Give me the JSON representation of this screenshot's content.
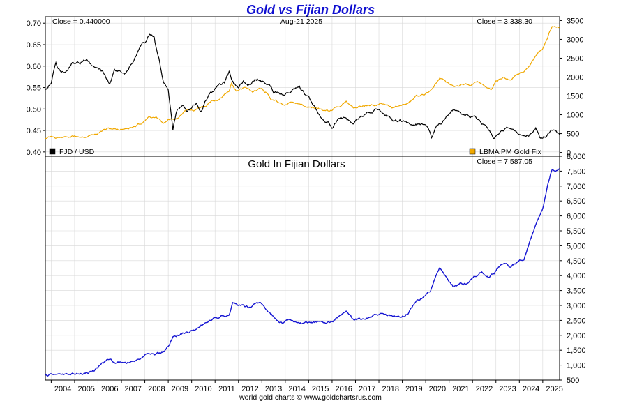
{
  "title": "Gold vs Fijian Dollars",
  "footer": "world gold charts © www.goldchartsrus.com",
  "colors": {
    "title": "#1010d0",
    "fjd": "#000000",
    "gold": "#f0a800",
    "gold_fjd": "#1414d2",
    "grid": "#d8d8d8"
  },
  "chart_data": [
    {
      "type": "line",
      "panel": "top",
      "date_label": "Aug-21  2025",
      "left_close_label": "Close = 0.440000",
      "right_close_label": "Close = 3,338.30",
      "left_axis": {
        "ticks": [
          "0.40",
          "0.45",
          "0.50",
          "0.55",
          "0.60",
          "0.65",
          "0.70"
        ],
        "range": [
          0.39,
          0.715
        ]
      },
      "right_axis": {
        "ticks": [
          "0",
          "500",
          "1000",
          "1500",
          "2000",
          "2500",
          "3000",
          "3500"
        ],
        "range": [
          -100,
          3600
        ]
      },
      "x_range": [
        2003.75,
        2025.72
      ],
      "series": [
        {
          "name": "FJD / USD",
          "axis": "left",
          "points": [
            [
              2003.75,
              0.545
            ],
            [
              2004.0,
              0.565
            ],
            [
              2004.2,
              0.605
            ],
            [
              2004.4,
              0.585
            ],
            [
              2004.6,
              0.585
            ],
            [
              2004.9,
              0.605
            ],
            [
              2005.2,
              0.605
            ],
            [
              2005.5,
              0.615
            ],
            [
              2005.8,
              0.595
            ],
            [
              2006.1,
              0.595
            ],
            [
              2006.3,
              0.58
            ],
            [
              2006.5,
              0.56
            ],
            [
              2006.7,
              0.595
            ],
            [
              2006.9,
              0.59
            ],
            [
              2007.2,
              0.585
            ],
            [
              2007.4,
              0.605
            ],
            [
              2007.6,
              0.625
            ],
            [
              2007.8,
              0.645
            ],
            [
              2008.0,
              0.655
            ],
            [
              2008.2,
              0.675
            ],
            [
              2008.4,
              0.67
            ],
            [
              2008.5,
              0.64
            ],
            [
              2008.6,
              0.62
            ],
            [
              2008.8,
              0.56
            ],
            [
              2009.0,
              0.545
            ],
            [
              2009.2,
              0.45
            ],
            [
              2009.3,
              0.48
            ],
            [
              2009.4,
              0.5
            ],
            [
              2009.6,
              0.51
            ],
            [
              2009.8,
              0.5
            ],
            [
              2010.0,
              0.505
            ],
            [
              2010.2,
              0.515
            ],
            [
              2010.4,
              0.495
            ],
            [
              2010.6,
              0.52
            ],
            [
              2010.8,
              0.535
            ],
            [
              2011.0,
              0.545
            ],
            [
              2011.2,
              0.555
            ],
            [
              2011.4,
              0.56
            ],
            [
              2011.6,
              0.585
            ],
            [
              2011.8,
              0.56
            ],
            [
              2012.0,
              0.55
            ],
            [
              2012.2,
              0.565
            ],
            [
              2012.4,
              0.555
            ],
            [
              2012.6,
              0.565
            ],
            [
              2012.8,
              0.57
            ],
            [
              2013.0,
              0.565
            ],
            [
              2013.3,
              0.56
            ],
            [
              2013.5,
              0.54
            ],
            [
              2013.8,
              0.535
            ],
            [
              2014.0,
              0.535
            ],
            [
              2014.3,
              0.545
            ],
            [
              2014.6,
              0.55
            ],
            [
              2014.9,
              0.53
            ],
            [
              2015.2,
              0.51
            ],
            [
              2015.5,
              0.485
            ],
            [
              2015.8,
              0.47
            ],
            [
              2016.0,
              0.46
            ],
            [
              2016.3,
              0.475
            ],
            [
              2016.6,
              0.48
            ],
            [
              2016.9,
              0.465
            ],
            [
              2017.2,
              0.48
            ],
            [
              2017.5,
              0.49
            ],
            [
              2017.8,
              0.495
            ],
            [
              2018.0,
              0.5
            ],
            [
              2018.3,
              0.49
            ],
            [
              2018.6,
              0.475
            ],
            [
              2018.9,
              0.475
            ],
            [
              2019.2,
              0.47
            ],
            [
              2019.5,
              0.465
            ],
            [
              2019.8,
              0.465
            ],
            [
              2020.1,
              0.46
            ],
            [
              2020.25,
              0.435
            ],
            [
              2020.4,
              0.455
            ],
            [
              2020.7,
              0.47
            ],
            [
              2021.0,
              0.49
            ],
            [
              2021.2,
              0.5
            ],
            [
              2021.5,
              0.49
            ],
            [
              2021.8,
              0.485
            ],
            [
              2022.1,
              0.48
            ],
            [
              2022.4,
              0.465
            ],
            [
              2022.7,
              0.45
            ],
            [
              2022.9,
              0.435
            ],
            [
              2023.2,
              0.45
            ],
            [
              2023.5,
              0.455
            ],
            [
              2023.8,
              0.445
            ],
            [
              2024.1,
              0.445
            ],
            [
              2024.4,
              0.44
            ],
            [
              2024.7,
              0.455
            ],
            [
              2024.9,
              0.43
            ],
            [
              2025.0,
              0.43
            ],
            [
              2025.2,
              0.44
            ],
            [
              2025.4,
              0.45
            ],
            [
              2025.72,
              0.44
            ]
          ]
        },
        {
          "name": "LBMA PM Gold Fix",
          "axis": "right",
          "points": [
            [
              2003.75,
              385
            ],
            [
              2004.0,
              410
            ],
            [
              2004.5,
              395
            ],
            [
              2005.0,
              425
            ],
            [
              2005.5,
              435
            ],
            [
              2005.9,
              480
            ],
            [
              2006.3,
              610
            ],
            [
              2006.6,
              630
            ],
            [
              2006.9,
              610
            ],
            [
              2007.2,
              650
            ],
            [
              2007.6,
              680
            ],
            [
              2007.9,
              800
            ],
            [
              2008.2,
              950
            ],
            [
              2008.5,
              900
            ],
            [
              2008.8,
              780
            ],
            [
              2009.0,
              870
            ],
            [
              2009.4,
              920
            ],
            [
              2009.8,
              1120
            ],
            [
              2010.2,
              1120
            ],
            [
              2010.6,
              1250
            ],
            [
              2010.9,
              1380
            ],
            [
              2011.2,
              1420
            ],
            [
              2011.6,
              1600
            ],
            [
              2011.7,
              1820
            ],
            [
              2011.9,
              1650
            ],
            [
              2012.2,
              1700
            ],
            [
              2012.6,
              1620
            ],
            [
              2012.9,
              1720
            ],
            [
              2013.2,
              1600
            ],
            [
              2013.4,
              1400
            ],
            [
              2013.7,
              1330
            ],
            [
              2014.0,
              1250
            ],
            [
              2014.3,
              1300
            ],
            [
              2014.6,
              1280
            ],
            [
              2014.9,
              1200
            ],
            [
              2015.2,
              1200
            ],
            [
              2015.6,
              1130
            ],
            [
              2015.9,
              1080
            ],
            [
              2016.2,
              1200
            ],
            [
              2016.6,
              1340
            ],
            [
              2016.9,
              1180
            ],
            [
              2017.2,
              1230
            ],
            [
              2017.6,
              1260
            ],
            [
              2017.9,
              1280
            ],
            [
              2018.2,
              1330
            ],
            [
              2018.6,
              1210
            ],
            [
              2018.9,
              1240
            ],
            [
              2019.2,
              1300
            ],
            [
              2019.6,
              1480
            ],
            [
              2019.9,
              1520
            ],
            [
              2020.2,
              1650
            ],
            [
              2020.6,
              1970
            ],
            [
              2020.9,
              1850
            ],
            [
              2021.2,
              1730
            ],
            [
              2021.5,
              1800
            ],
            [
              2021.9,
              1790
            ],
            [
              2022.2,
              1920
            ],
            [
              2022.5,
              1800
            ],
            [
              2022.8,
              1650
            ],
            [
              2023.0,
              1880
            ],
            [
              2023.3,
              2000
            ],
            [
              2023.6,
              1930
            ],
            [
              2023.9,
              2050
            ],
            [
              2024.2,
              2180
            ],
            [
              2024.5,
              2350
            ],
            [
              2024.8,
              2650
            ],
            [
              2025.0,
              2750
            ],
            [
              2025.2,
              3050
            ],
            [
              2025.4,
              3350
            ],
            [
              2025.72,
              3338
            ]
          ]
        }
      ]
    },
    {
      "type": "line",
      "panel": "bottom",
      "title": "Gold In Fijian Dollars",
      "close_label": "Close = 7,587.05",
      "y_axis": {
        "ticks": [
          "500",
          "1,000",
          "1,500",
          "2,000",
          "2,500",
          "3,000",
          "3,500",
          "4,000",
          "4,500",
          "5,000",
          "5,500",
          "6,000",
          "6,500",
          "7,000",
          "7,500",
          "8,000"
        ],
        "range": [
          500,
          8000
        ]
      },
      "x_axis": {
        "ticks": [
          "2004",
          "2005",
          "2006",
          "2007",
          "2008",
          "2009",
          "2010",
          "2011",
          "2012",
          "2013",
          "2014",
          "2015",
          "2016",
          "2017",
          "2018",
          "2019",
          "2020",
          "2021",
          "2022",
          "2023",
          "2024",
          "2025"
        ]
      },
      "x_range": [
        2003.75,
        2025.72
      ],
      "series": [
        {
          "name": "",
          "points": [
            [
              2003.75,
              680
            ],
            [
              2004.2,
              700
            ],
            [
              2004.8,
              710
            ],
            [
              2005.3,
              720
            ],
            [
              2005.7,
              780
            ],
            [
              2005.9,
              880
            ],
            [
              2006.2,
              1050
            ],
            [
              2006.4,
              1150
            ],
            [
              2006.7,
              1080
            ],
            [
              2007.0,
              1100
            ],
            [
              2007.3,
              1080
            ],
            [
              2007.6,
              1150
            ],
            [
              2007.9,
              1250
            ],
            [
              2008.2,
              1400
            ],
            [
              2008.5,
              1350
            ],
            [
              2008.8,
              1450
            ],
            [
              2009.0,
              1600
            ],
            [
              2009.2,
              1950
            ],
            [
              2009.5,
              2050
            ],
            [
              2009.8,
              2100
            ],
            [
              2010.1,
              2150
            ],
            [
              2010.4,
              2350
            ],
            [
              2010.7,
              2400
            ],
            [
              2011.0,
              2550
            ],
            [
              2011.3,
              2650
            ],
            [
              2011.6,
              2700
            ],
            [
              2011.75,
              3100
            ],
            [
              2011.9,
              3050
            ],
            [
              2012.2,
              3000
            ],
            [
              2012.5,
              2950
            ],
            [
              2012.8,
              3100
            ],
            [
              2013.0,
              3050
            ],
            [
              2013.3,
              2800
            ],
            [
              2013.6,
              2550
            ],
            [
              2013.9,
              2400
            ],
            [
              2014.2,
              2500
            ],
            [
              2014.5,
              2400
            ],
            [
              2014.8,
              2350
            ],
            [
              2015.1,
              2400
            ],
            [
              2015.4,
              2450
            ],
            [
              2015.7,
              2400
            ],
            [
              2016.0,
              2450
            ],
            [
              2016.3,
              2650
            ],
            [
              2016.6,
              2750
            ],
            [
              2016.9,
              2500
            ],
            [
              2017.2,
              2550
            ],
            [
              2017.5,
              2600
            ],
            [
              2017.8,
              2650
            ],
            [
              2018.1,
              2700
            ],
            [
              2018.4,
              2650
            ],
            [
              2018.7,
              2600
            ],
            [
              2018.9,
              2550
            ],
            [
              2019.2,
              2700
            ],
            [
              2019.6,
              3100
            ],
            [
              2019.9,
              3250
            ],
            [
              2020.2,
              3500
            ],
            [
              2020.5,
              4100
            ],
            [
              2020.6,
              4250
            ],
            [
              2020.9,
              3900
            ],
            [
              2021.2,
              3600
            ],
            [
              2021.5,
              3750
            ],
            [
              2021.8,
              3750
            ],
            [
              2022.1,
              3950
            ],
            [
              2022.4,
              4100
            ],
            [
              2022.7,
              3950
            ],
            [
              2023.0,
              4150
            ],
            [
              2023.3,
              4400
            ],
            [
              2023.6,
              4300
            ],
            [
              2023.9,
              4450
            ],
            [
              2024.2,
              4600
            ],
            [
              2024.5,
              5300
            ],
            [
              2024.8,
              5900
            ],
            [
              2025.0,
              6200
            ],
            [
              2025.2,
              7000
            ],
            [
              2025.4,
              7550
            ],
            [
              2025.55,
              7450
            ],
            [
              2025.72,
              7587
            ]
          ]
        }
      ]
    }
  ]
}
